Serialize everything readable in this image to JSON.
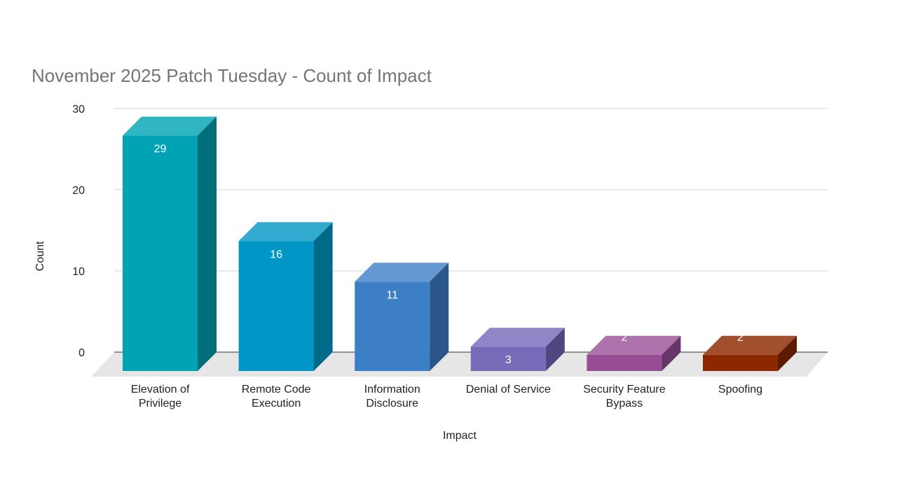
{
  "chart_data": {
    "type": "bar",
    "title": "November 2025 Patch Tuesday - Count of Impact",
    "xlabel": "Impact",
    "ylabel": "Count",
    "ylim": [
      0,
      30
    ],
    "yticks": [
      "0",
      "10",
      "20",
      "30"
    ],
    "grid": true,
    "three_d": true,
    "categories": [
      [
        "Elevation of",
        "Privilege"
      ],
      [
        "Remote Code",
        "Execution"
      ],
      [
        "Information",
        "Disclosure"
      ],
      [
        "Denial of Service"
      ],
      [
        "Security Feature",
        "Bypass"
      ],
      [
        "Spoofing"
      ]
    ],
    "values": [
      29,
      16,
      11,
      3,
      2,
      2
    ],
    "data_labels": [
      "29",
      "16",
      "11",
      "3",
      "2",
      "2"
    ],
    "colors": [
      "#00a3b4",
      "#0096c5",
      "#3d7fc6",
      "#776bb9",
      "#964d94",
      "#8c2800"
    ],
    "top_colors": [
      "#30b5c2",
      "#33aad0",
      "#6398d2",
      "#9085c7",
      "#ad71ab",
      "#a24f2e"
    ],
    "side_colors": [
      "#006f7a",
      "#006a8b",
      "#2a5689",
      "#4e4780",
      "#673567",
      "#5f1b00"
    ]
  }
}
